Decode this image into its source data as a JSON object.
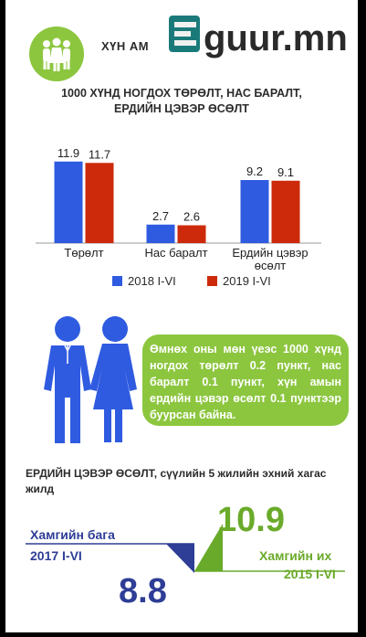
{
  "header": {
    "section_label": "ХҮН АМ",
    "logo_text": "Eguur.mn",
    "icon": "people-group-icon"
  },
  "chart_data": [
    {
      "type": "bar",
      "title": "1000 ХҮНД НОГДОХ ТӨРӨЛТ, НАС БАРАЛТ, ЕРДИЙН ЦЭВЭР ӨСӨЛТ",
      "title_lines": [
        "1000 ХҮНД НОГДОХ ТӨРӨЛТ, НАС БАРАЛТ,",
        "ЕРДИЙН ЦЭВЭР ӨСӨЛТ"
      ],
      "categories": [
        "Төрөлт",
        "Нас баралт",
        "Ердийн цэвэр өсөлт"
      ],
      "category_lines": [
        [
          "Төрөлт"
        ],
        [
          "Нас баралт"
        ],
        [
          "Ердийн цэвэр",
          "өсөлт"
        ]
      ],
      "series": [
        {
          "name": "2018 I-VI",
          "values": [
            11.9,
            2.7,
            9.2
          ],
          "color": "#2f5be0"
        },
        {
          "name": "2019 I-VI",
          "values": [
            11.7,
            2.6,
            9.1
          ],
          "color": "#cc2a0a"
        }
      ],
      "ylim": [
        0,
        12
      ],
      "grid": false,
      "legend": "bottom"
    },
    {
      "type": "other",
      "title": "ЕРДИЙН ЦЭВЭР ӨСӨЛТ, сүүлийн 5 жилийн эхний хагас жилд",
      "low": {
        "label": "Хамгийн бага",
        "period": "2017 I-VI",
        "value": 8.8,
        "color": "#2e3d96"
      },
      "high": {
        "label": "Хамгийн их",
        "period": "2015 I-VI",
        "value": 10.9,
        "color": "#6aaa2a"
      }
    }
  ],
  "callout": {
    "text": "Өмнөх оны мөн үеэс 1000 хүнд ногдох төрөлт 0.2 пункт, нас баралт 0.1 пункт, хүн амын ердийн цэвэр өсөлт 0.1 пунктээр буурсан байна.",
    "icon": "couple-icon"
  },
  "section2": {
    "title_bold": "ЕРДИЙН ЦЭВЭР ӨСӨЛТ,",
    "title_rest": " сүүлийн 5 жилийн эхний хагас жилд"
  }
}
